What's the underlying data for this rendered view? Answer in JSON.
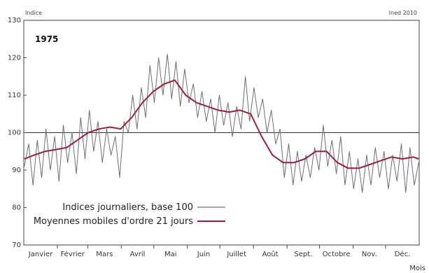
{
  "chart_data": {
    "type": "line",
    "title": "1975",
    "ylabel": "Indice",
    "xlabel": "Mois",
    "source": "Ined 2010",
    "ylim": [
      70,
      130
    ],
    "yticks": [
      70,
      80,
      90,
      100,
      110,
      120,
      130
    ],
    "reference_line": 100,
    "months": [
      "Janvier",
      "Février",
      "Mars",
      "Avril",
      "Mai",
      "Juin",
      "Juillet",
      "Août",
      "Sept.",
      "Octobre",
      "Nov.",
      "Déc."
    ],
    "days_in_months": [
      31,
      28,
      31,
      30,
      31,
      30,
      31,
      31,
      30,
      31,
      30,
      31
    ],
    "series": [
      {
        "name": "Indices journaliers, base 100",
        "color": "#6e6e6e",
        "x_day": [
          1,
          5,
          9,
          13,
          17,
          21,
          25,
          29,
          33,
          37,
          41,
          45,
          49,
          53,
          57,
          61,
          65,
          69,
          73,
          77,
          81,
          85,
          89,
          93,
          97,
          101,
          105,
          109,
          113,
          117,
          121,
          125,
          129,
          133,
          137,
          141,
          145,
          149,
          153,
          157,
          161,
          165,
          169,
          173,
          177,
          181,
          185,
          189,
          193,
          197,
          201,
          205,
          209,
          213,
          217,
          221,
          225,
          229,
          233,
          237,
          241,
          245,
          249,
          253,
          257,
          261,
          265,
          269,
          273,
          277,
          281,
          285,
          289,
          293,
          297,
          301,
          305,
          309,
          313,
          317,
          321,
          325,
          329,
          333,
          337,
          341,
          345,
          349,
          353,
          357,
          361,
          365
        ],
        "values": [
          91,
          97,
          86,
          98,
          88,
          101,
          90,
          99,
          87,
          102,
          92,
          100,
          89,
          104,
          93,
          106,
          95,
          103,
          92,
          101,
          94,
          99,
          88,
          103,
          100,
          110,
          101,
          112,
          104,
          118,
          108,
          120,
          110,
          121,
          109,
          119,
          107,
          117,
          108,
          113,
          104,
          111,
          103,
          109,
          100,
          110,
          102,
          108,
          99,
          107,
          101,
          115,
          103,
          112,
          104,
          109,
          100,
          106,
          97,
          101,
          88,
          97,
          86,
          95,
          87,
          94,
          88,
          96,
          90,
          102,
          91,
          98,
          89,
          99,
          86,
          95,
          85,
          93,
          84,
          94,
          86,
          96,
          88,
          95,
          85,
          94,
          87,
          97,
          84,
          96,
          86,
          92
        ]
      },
      {
        "name": "Moyennes mobiles d'ordre 21 jours",
        "color": "#9b1f3a",
        "x_day": [
          1,
          10,
          20,
          30,
          40,
          50,
          60,
          70,
          80,
          90,
          100,
          110,
          120,
          130,
          140,
          150,
          160,
          170,
          180,
          190,
          200,
          210,
          220,
          230,
          240,
          250,
          260,
          270,
          280,
          290,
          300,
          310,
          320,
          330,
          340,
          350,
          360,
          365
        ],
        "values": [
          93,
          94,
          95,
          95.5,
          96,
          98,
          100,
          101,
          101.5,
          101,
          104,
          108,
          111,
          113,
          114,
          110,
          108,
          107,
          106,
          105.5,
          106,
          105,
          99,
          94,
          92,
          92,
          93,
          95,
          95,
          92,
          90.5,
          90.5,
          91.5,
          92.5,
          93.5,
          93,
          93.5,
          93
        ]
      }
    ]
  }
}
